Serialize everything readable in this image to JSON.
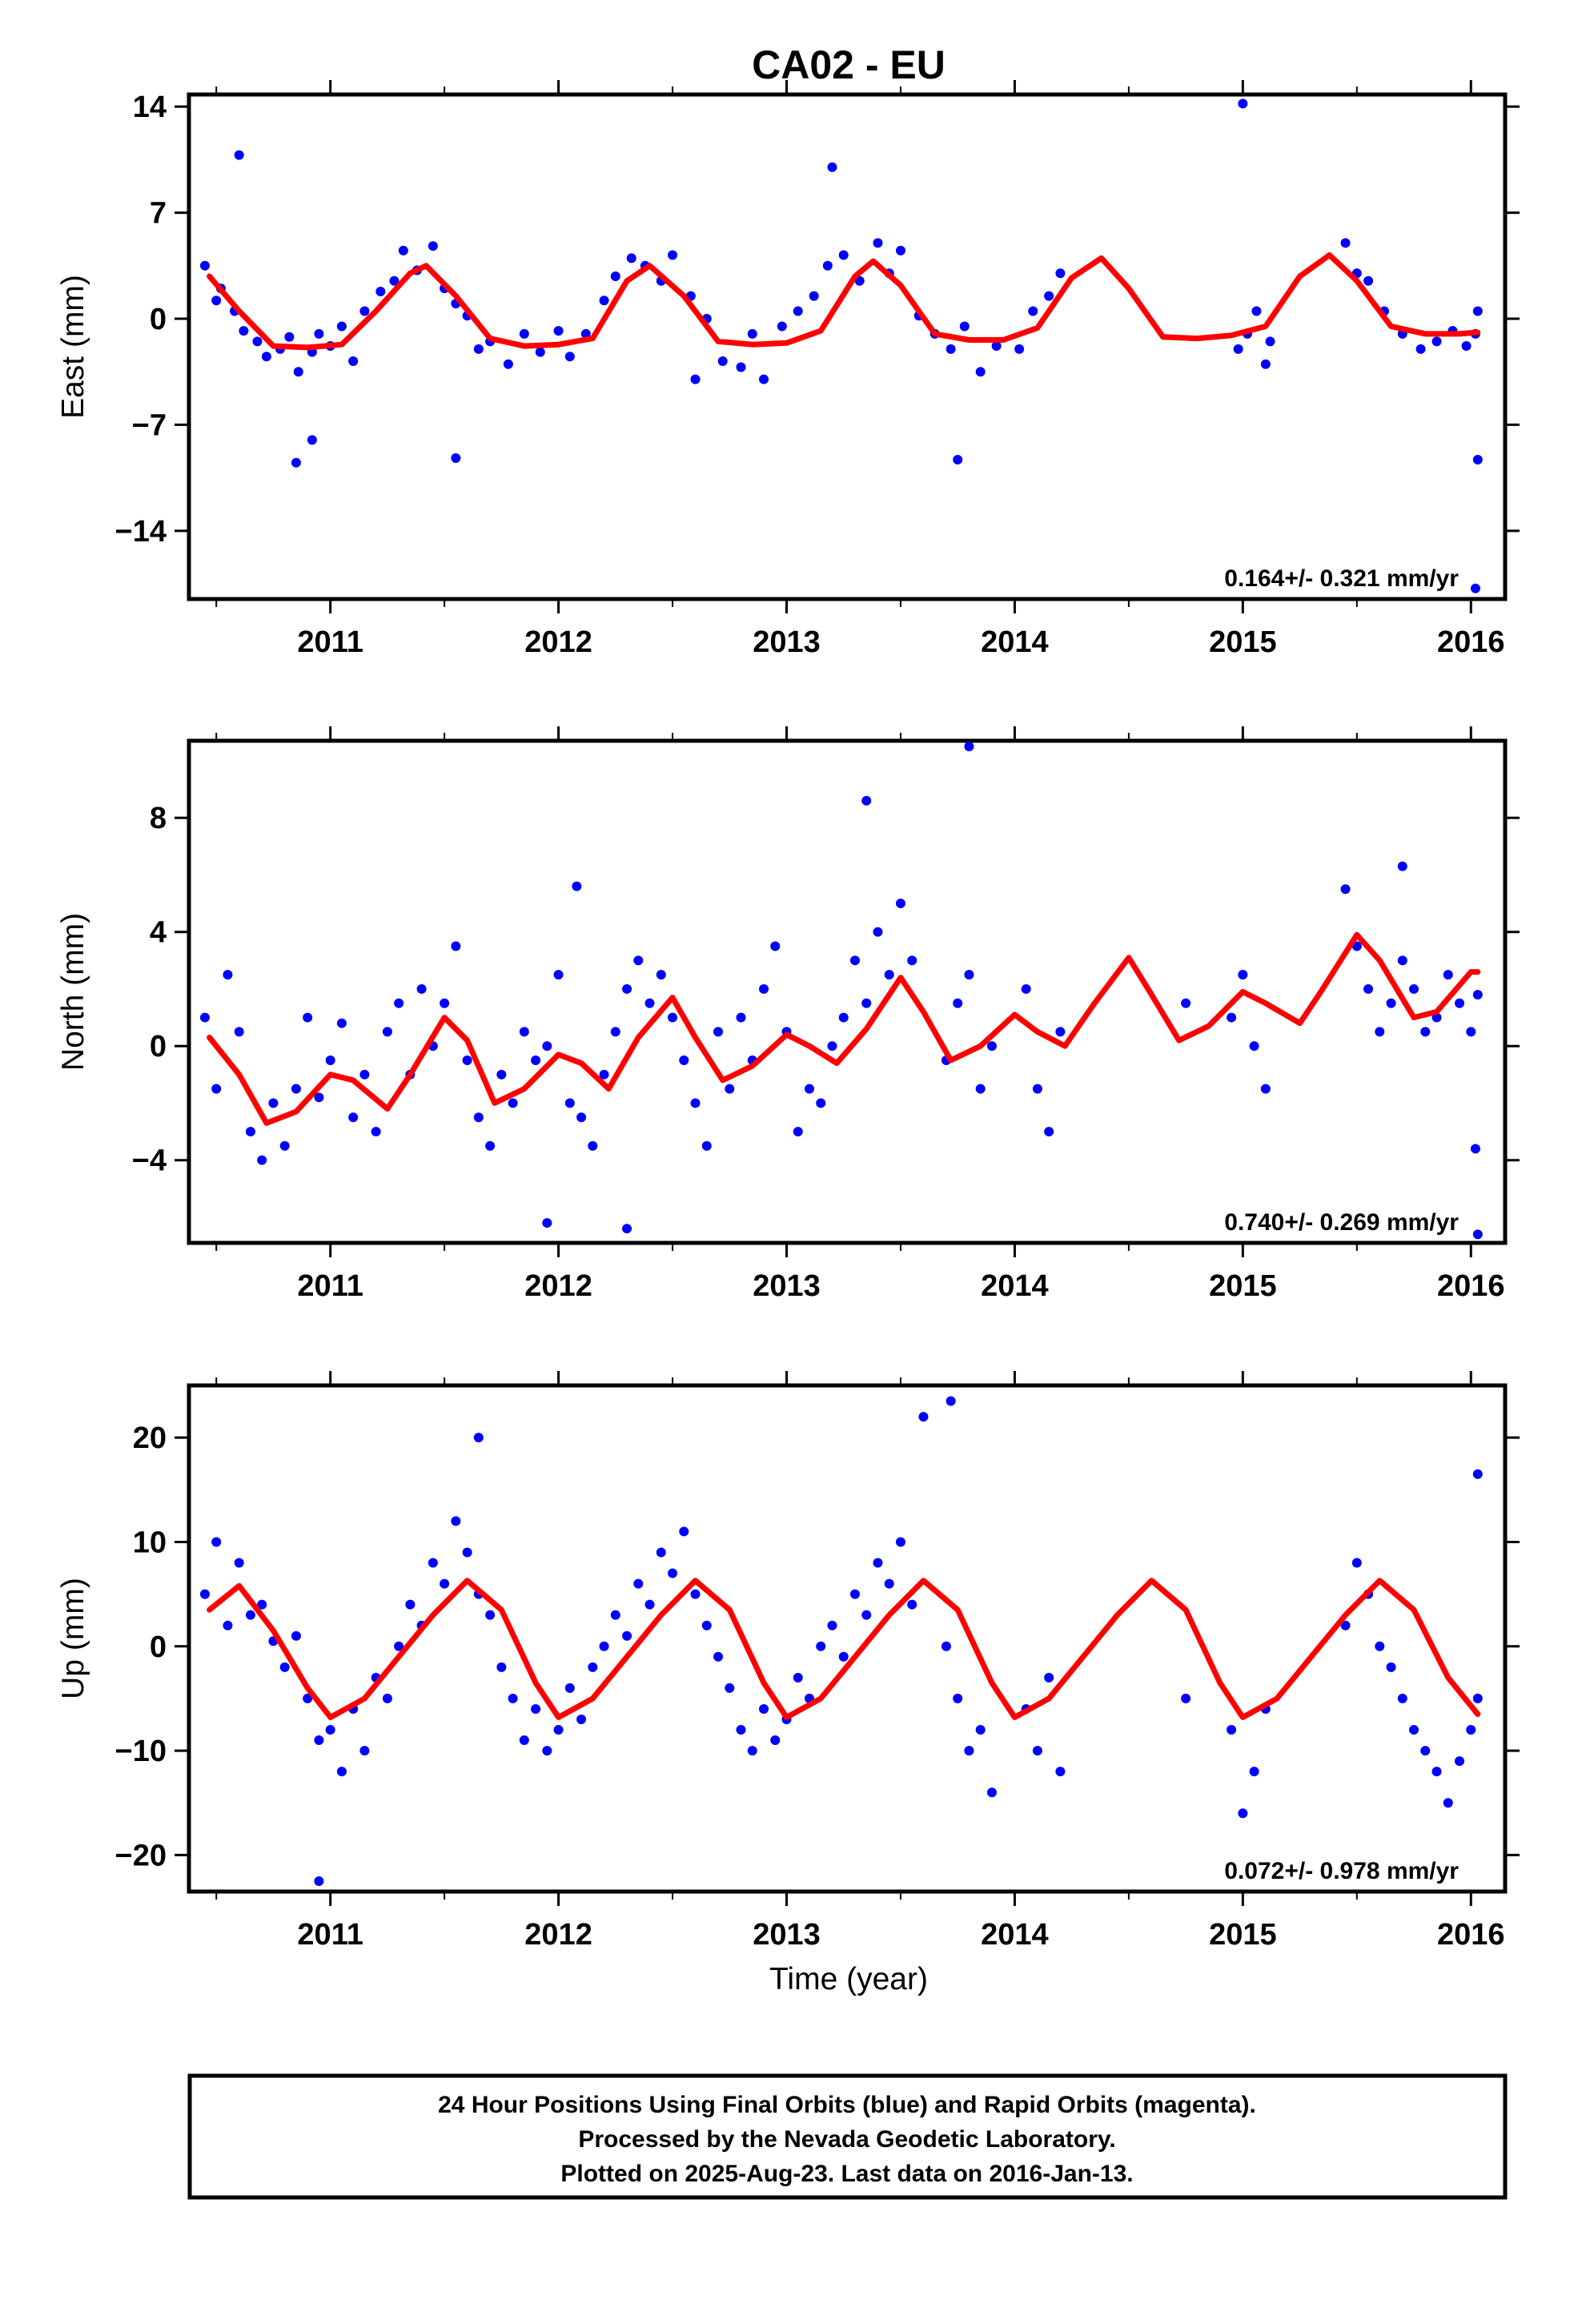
{
  "title": "CA02 - EU",
  "x_axis_label": "Time (year)",
  "colors": {
    "points": "#0000ff",
    "fit": "#ff0000",
    "frame": "#000000"
  },
  "footer": {
    "line1": "24 Hour Positions Using Final Orbits (blue) and Rapid Orbits (magenta).",
    "line2": "Processed by the Nevada Geodetic Laboratory.",
    "line3": "Plotted on 2025-Aug-23. Last data on 2016-Jan-13."
  },
  "chart_data": [
    {
      "type": "scatter",
      "component": "east",
      "ylabel": "East (mm)",
      "xlim": [
        2010.38,
        2016.15
      ],
      "ylim": [
        -18.5,
        14.8
      ],
      "xticks": [
        2011,
        2012,
        2013,
        2014,
        2015,
        2016
      ],
      "yticks": [
        -14,
        -7,
        0,
        7,
        14
      ],
      "ytick_labels": [
        "−14",
        "−7",
        "0",
        "7",
        "14"
      ],
      "rate_text": "0.164+/- 0.321 mm/yr",
      "series": [
        {
          "kind": "fit-line",
          "x": [
            2010.47,
            2010.6,
            2010.75,
            2010.9,
            2011.05,
            2011.2,
            2011.35,
            2011.42,
            2011.55,
            2011.7,
            2011.85,
            2012.0,
            2012.15,
            2012.3,
            2012.4,
            2012.55,
            2012.7,
            2012.85,
            2013.0,
            2013.15,
            2013.3,
            2013.38,
            2013.5,
            2013.65,
            2013.8,
            2013.95,
            2014.1,
            2014.25,
            2014.38,
            2014.5,
            2014.65,
            2014.8,
            2014.95,
            2015.1,
            2015.25,
            2015.38,
            2015.5,
            2015.65,
            2015.8,
            2015.95,
            2016.03
          ],
          "y": [
            2.8,
            0.5,
            -1.8,
            -1.9,
            -1.7,
            0.5,
            3.0,
            3.5,
            1.5,
            -1.3,
            -1.8,
            -1.7,
            -1.3,
            2.5,
            3.5,
            1.5,
            -1.5,
            -1.7,
            -1.6,
            -0.8,
            2.8,
            3.8,
            2.2,
            -1.0,
            -1.4,
            -1.4,
            -0.6,
            2.7,
            4.0,
            2.0,
            -1.2,
            -1.3,
            -1.1,
            -0.5,
            2.8,
            4.2,
            2.5,
            -0.5,
            -1.0,
            -1.0,
            -0.9
          ]
        },
        {
          "kind": "points",
          "x": [
            2010.45,
            2010.5,
            2010.52,
            2010.58,
            2010.62,
            2010.68,
            2010.72,
            2010.78,
            2010.82,
            2010.86,
            2010.92,
            2010.95,
            2011.0,
            2011.05,
            2011.1,
            2011.15,
            2011.22,
            2011.28,
            2011.32,
            2011.38,
            2011.45,
            2011.5,
            2011.55,
            2011.6,
            2011.65,
            2011.7,
            2011.78,
            2011.85,
            2011.92,
            2012.0,
            2012.05,
            2012.12,
            2012.2,
            2012.25,
            2012.32,
            2012.38,
            2012.45,
            2012.5,
            2012.58,
            2012.65,
            2012.72,
            2012.8,
            2012.85,
            2012.9,
            2012.98,
            2013.05,
            2013.12,
            2013.18,
            2013.25,
            2013.32,
            2013.4,
            2013.45,
            2013.5,
            2013.58,
            2013.65,
            2013.72,
            2013.78,
            2013.85,
            2013.92,
            2014.02,
            2014.08,
            2014.15,
            2014.2,
            2014.98,
            2015.02,
            2015.06,
            2015.1,
            2015.12,
            2015.45,
            2015.5,
            2015.55,
            2015.62,
            2015.7,
            2015.78,
            2015.85,
            2015.92,
            2015.98,
            2016.02,
            2016.03,
            2010.6,
            2010.92,
            2010.85,
            2011.55,
            2012.6,
            2013.2,
            2013.75,
            2015.0,
            2016.02,
            2016.03
          ],
          "y": [
            3.5,
            1.2,
            2.0,
            0.5,
            -0.8,
            -1.5,
            -2.5,
            -2.0,
            -1.2,
            -3.5,
            -2.2,
            -1.0,
            -1.8,
            -0.5,
            -2.8,
            0.5,
            1.8,
            2.5,
            4.5,
            3.2,
            4.8,
            2.0,
            1.0,
            0.2,
            -2.0,
            -1.5,
            -3.0,
            -1.0,
            -2.2,
            -0.8,
            -2.5,
            -1.0,
            1.2,
            2.8,
            4.0,
            3.5,
            2.5,
            4.2,
            1.5,
            0.0,
            -2.8,
            -3.2,
            -1.0,
            -4.0,
            -0.5,
            0.5,
            1.5,
            3.5,
            4.2,
            2.5,
            5.0,
            3.0,
            4.5,
            0.2,
            -1.0,
            -2.0,
            -0.5,
            -3.5,
            -1.8,
            -2.0,
            0.5,
            1.5,
            3.0,
            -2.0,
            -1.0,
            0.5,
            -3.0,
            -1.5,
            5.0,
            3.0,
            2.5,
            0.5,
            -1.0,
            -2.0,
            -1.5,
            -0.8,
            -1.8,
            -1.0,
            0.5,
            10.8,
            -8.0,
            -9.5,
            -9.2,
            -4.0,
            10.0,
            -9.3,
            14.2,
            -17.8,
            -9.3
          ]
        }
      ]
    },
    {
      "type": "scatter",
      "component": "north",
      "ylabel": "North (mm)",
      "xlim": [
        2010.38,
        2016.15
      ],
      "ylim": [
        -6.9,
        10.7
      ],
      "xticks": [
        2011,
        2012,
        2013,
        2014,
        2015,
        2016
      ],
      "yticks": [
        -4,
        0,
        4,
        8
      ],
      "ytick_labels": [
        "−4",
        "0",
        "4",
        "8"
      ],
      "rate_text": "0.740+/- 0.269 mm/yr",
      "series": [
        {
          "kind": "fit-line",
          "x": [
            2010.47,
            2010.6,
            2010.72,
            2010.85,
            2011.0,
            2011.1,
            2011.25,
            2011.35,
            2011.5,
            2011.6,
            2011.72,
            2011.85,
            2012.0,
            2012.1,
            2012.22,
            2012.35,
            2012.5,
            2012.6,
            2012.72,
            2012.85,
            2013.0,
            2013.1,
            2013.22,
            2013.35,
            2013.5,
            2013.6,
            2013.72,
            2013.85,
            2014.0,
            2014.1,
            2014.22,
            2014.35,
            2014.5,
            2014.6,
            2014.72,
            2014.85,
            2015.0,
            2015.1,
            2015.25,
            2015.35,
            2015.5,
            2015.6,
            2015.75,
            2015.85,
            2016.0,
            2016.03
          ],
          "y": [
            0.3,
            -1.0,
            -2.7,
            -2.3,
            -1.0,
            -1.2,
            -2.2,
            -1.0,
            1.0,
            0.2,
            -2.0,
            -1.5,
            -0.3,
            -0.6,
            -1.5,
            0.3,
            1.7,
            0.3,
            -1.2,
            -0.7,
            0.4,
            0.0,
            -0.6,
            0.6,
            2.4,
            1.2,
            -0.5,
            0.0,
            1.1,
            0.5,
            0.0,
            1.5,
            3.1,
            1.8,
            0.2,
            0.7,
            1.9,
            1.5,
            0.8,
            2.0,
            3.9,
            3.0,
            1.0,
            1.2,
            2.6,
            2.6
          ]
        },
        {
          "kind": "points",
          "x": [
            2010.45,
            2010.5,
            2010.55,
            2010.6,
            2010.65,
            2010.7,
            2010.75,
            2010.8,
            2010.85,
            2010.9,
            2010.95,
            2011.0,
            2011.05,
            2011.1,
            2011.15,
            2011.2,
            2011.25,
            2011.3,
            2011.35,
            2011.4,
            2011.45,
            2011.5,
            2011.55,
            2011.6,
            2011.65,
            2011.7,
            2011.75,
            2011.8,
            2011.85,
            2011.9,
            2011.95,
            2012.0,
            2012.05,
            2012.1,
            2012.15,
            2012.2,
            2012.25,
            2012.3,
            2012.35,
            2012.4,
            2012.45,
            2012.5,
            2012.55,
            2012.6,
            2012.65,
            2012.7,
            2012.75,
            2012.8,
            2012.85,
            2012.9,
            2012.95,
            2013.0,
            2013.05,
            2013.1,
            2013.15,
            2013.2,
            2013.25,
            2013.3,
            2013.35,
            2013.4,
            2013.45,
            2013.5,
            2013.55,
            2013.7,
            2013.75,
            2013.8,
            2013.85,
            2013.9,
            2014.05,
            2014.1,
            2014.15,
            2014.2,
            2014.75,
            2014.95,
            2015.0,
            2015.05,
            2015.1,
            2015.45,
            2015.5,
            2015.55,
            2015.6,
            2015.65,
            2015.7,
            2015.75,
            2015.8,
            2015.85,
            2015.9,
            2015.95,
            2016.0,
            2016.03,
            2013.35,
            2013.8,
            2012.08,
            2011.95,
            2012.3,
            2015.7,
            2016.03,
            2016.02
          ],
          "y": [
            1.0,
            -1.5,
            2.5,
            0.5,
            -3.0,
            -4.0,
            -2.0,
            -3.5,
            -1.5,
            1.0,
            -1.8,
            -0.5,
            0.8,
            -2.5,
            -1.0,
            -3.0,
            0.5,
            1.5,
            -1.0,
            2.0,
            0.0,
            1.5,
            3.5,
            -0.5,
            -2.5,
            -3.5,
            -1.0,
            -2.0,
            0.5,
            -0.5,
            0.0,
            2.5,
            -2.0,
            -2.5,
            -3.5,
            -1.0,
            0.5,
            2.0,
            3.0,
            1.5,
            2.5,
            1.0,
            -0.5,
            -2.0,
            -3.5,
            0.5,
            -1.5,
            1.0,
            -0.5,
            2.0,
            3.5,
            0.5,
            -3.0,
            -1.5,
            -2.0,
            0.0,
            1.0,
            3.0,
            1.5,
            4.0,
            2.5,
            5.0,
            3.0,
            -0.5,
            1.5,
            2.5,
            -1.5,
            0.0,
            2.0,
            -1.5,
            -3.0,
            0.5,
            1.5,
            1.0,
            2.5,
            0.0,
            -1.5,
            5.5,
            3.5,
            2.0,
            0.5,
            1.5,
            3.0,
            2.0,
            0.5,
            1.0,
            2.5,
            1.5,
            0.5,
            1.8,
            8.6,
            10.5,
            5.6,
            -6.2,
            -6.4,
            6.3,
            -6.6,
            -3.6
          ]
        }
      ]
    },
    {
      "type": "scatter",
      "component": "up",
      "ylabel": "Up (mm)",
      "xlim": [
        2010.38,
        2016.15
      ],
      "ylim": [
        -23.5,
        25.0
      ],
      "xticks": [
        2011,
        2012,
        2013,
        2014,
        2015,
        2016
      ],
      "yticks": [
        -20,
        -10,
        0,
        10,
        20
      ],
      "ytick_labels": [
        "−20",
        "−10",
        "0",
        "10",
        "20"
      ],
      "rate_text": "0.072+/- 0.978 mm/yr",
      "series": [
        {
          "kind": "fit-line",
          "x": [
            2010.47,
            2010.6,
            2010.75,
            2010.9,
            2011.0,
            2011.15,
            2011.3,
            2011.45,
            2011.6,
            2011.75,
            2011.9,
            2012.0,
            2012.15,
            2012.3,
            2012.45,
            2012.6,
            2012.75,
            2012.9,
            2013.0,
            2013.15,
            2013.3,
            2013.45,
            2013.6,
            2013.75,
            2013.9,
            2014.0,
            2014.15,
            2014.3,
            2014.45,
            2014.6,
            2014.75,
            2014.9,
            2015.0,
            2015.15,
            2015.3,
            2015.45,
            2015.6,
            2015.75,
            2015.9,
            2016.03
          ],
          "y": [
            3.5,
            5.8,
            1.5,
            -4.0,
            -6.8,
            -5.0,
            -1.0,
            3.0,
            6.3,
            3.5,
            -3.5,
            -6.8,
            -5.0,
            -1.0,
            3.0,
            6.3,
            3.5,
            -3.5,
            -6.8,
            -5.0,
            -1.0,
            3.0,
            6.3,
            3.5,
            -3.5,
            -6.8,
            -5.0,
            -1.0,
            3.0,
            6.3,
            3.5,
            -3.5,
            -6.8,
            -5.0,
            -1.0,
            3.0,
            6.3,
            3.5,
            -3.0,
            -6.5
          ]
        },
        {
          "kind": "points",
          "x": [
            2010.45,
            2010.5,
            2010.55,
            2010.6,
            2010.65,
            2010.7,
            2010.75,
            2010.8,
            2010.85,
            2010.9,
            2010.95,
            2011.0,
            2011.05,
            2011.1,
            2011.15,
            2011.2,
            2011.25,
            2011.3,
            2011.35,
            2011.4,
            2011.45,
            2011.5,
            2011.55,
            2011.6,
            2011.65,
            2011.7,
            2011.75,
            2011.8,
            2011.85,
            2011.9,
            2011.95,
            2012.0,
            2012.05,
            2012.1,
            2012.15,
            2012.2,
            2012.25,
            2012.3,
            2012.35,
            2012.4,
            2012.45,
            2012.5,
            2012.55,
            2012.6,
            2012.65,
            2012.7,
            2012.75,
            2012.8,
            2012.85,
            2012.9,
            2012.95,
            2013.0,
            2013.05,
            2013.1,
            2013.15,
            2013.2,
            2013.25,
            2013.3,
            2013.35,
            2013.4,
            2013.45,
            2013.5,
            2013.55,
            2013.7,
            2013.75,
            2013.8,
            2013.85,
            2013.9,
            2014.05,
            2014.1,
            2014.15,
            2014.2,
            2014.75,
            2014.95,
            2015.0,
            2015.05,
            2015.1,
            2015.45,
            2015.5,
            2015.55,
            2015.6,
            2015.65,
            2015.7,
            2015.75,
            2015.8,
            2015.85,
            2015.9,
            2015.95,
            2016.0,
            2016.03,
            2010.95,
            2011.65,
            2013.6,
            2013.72,
            2016.03
          ],
          "y": [
            5.0,
            10.0,
            2.0,
            8.0,
            3.0,
            4.0,
            0.5,
            -2.0,
            1.0,
            -5.0,
            -9.0,
            -8.0,
            -12.0,
            -6.0,
            -10.0,
            -3.0,
            -5.0,
            0.0,
            4.0,
            2.0,
            8.0,
            6.0,
            12.0,
            9.0,
            5.0,
            3.0,
            -2.0,
            -5.0,
            -9.0,
            -6.0,
            -10.0,
            -8.0,
            -4.0,
            -7.0,
            -2.0,
            0.0,
            3.0,
            1.0,
            6.0,
            4.0,
            9.0,
            7.0,
            11.0,
            5.0,
            2.0,
            -1.0,
            -4.0,
            -8.0,
            -10.0,
            -6.0,
            -9.0,
            -7.0,
            -3.0,
            -5.0,
            0.0,
            2.0,
            -1.0,
            5.0,
            3.0,
            8.0,
            6.0,
            10.0,
            4.0,
            0.0,
            -5.0,
            -10.0,
            -8.0,
            -14.0,
            -6.0,
            -10.0,
            -3.0,
            -12.0,
            -5.0,
            -8.0,
            -16.0,
            -12.0,
            -6.0,
            2.0,
            8.0,
            5.0,
            0.0,
            -2.0,
            -5.0,
            -8.0,
            -10.0,
            -12.0,
            -15.0,
            -11.0,
            -8.0,
            -5.0,
            -22.5,
            20.0,
            22.0,
            23.5,
            16.5
          ]
        }
      ]
    }
  ]
}
